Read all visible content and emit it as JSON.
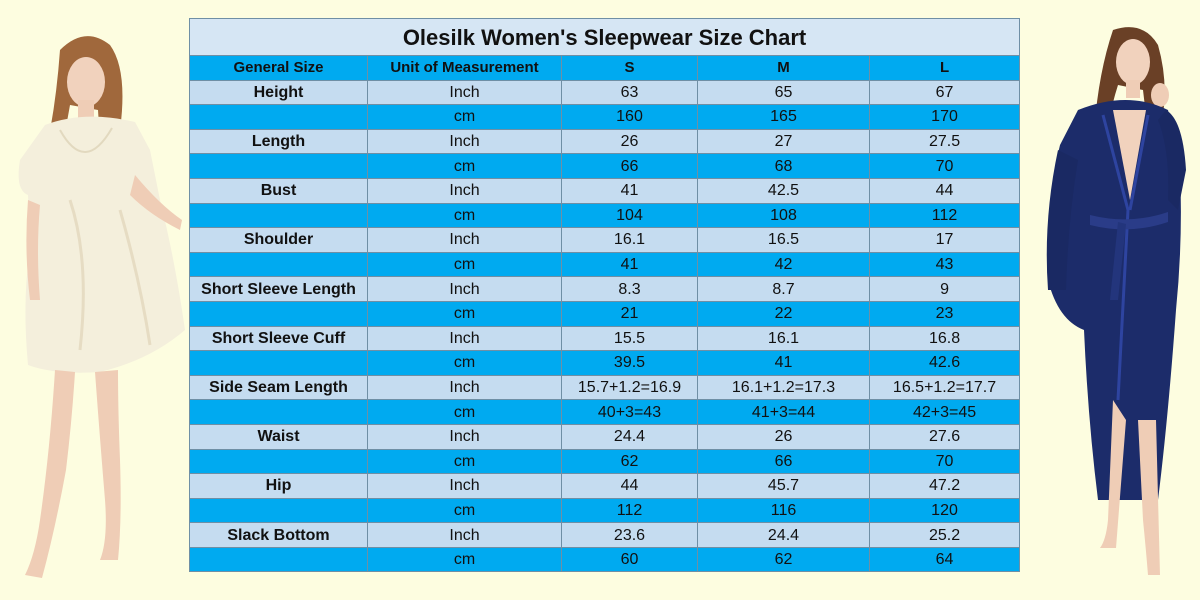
{
  "chart": {
    "title": "Olesilk  Women's Sleepwear Size Chart",
    "headers": [
      "General Size",
      "Unit of Measurement",
      "S",
      "M",
      "L"
    ],
    "rows": [
      {
        "label": "Height",
        "inch": [
          "63",
          "65",
          "67"
        ],
        "cm": [
          "160",
          "165",
          "170"
        ]
      },
      {
        "label": "Length",
        "inch": [
          "26",
          "27",
          "27.5"
        ],
        "cm": [
          "66",
          "68",
          "70"
        ]
      },
      {
        "label": "Bust",
        "inch": [
          "41",
          "42.5",
          "44"
        ],
        "cm": [
          "104",
          "108",
          "112"
        ]
      },
      {
        "label": "Shoulder",
        "inch": [
          "16.1",
          "16.5",
          "17"
        ],
        "cm": [
          "41",
          "42",
          "43"
        ]
      },
      {
        "label": "Short Sleeve Length",
        "inch": [
          "8.3",
          "8.7",
          "9"
        ],
        "cm": [
          "21",
          "22",
          "23"
        ]
      },
      {
        "label": "Short Sleeve Cuff",
        "inch": [
          "15.5",
          "16.1",
          "16.8"
        ],
        "cm": [
          "39.5",
          "41",
          "42.6"
        ]
      },
      {
        "label": "Side Seam Length",
        "inch": [
          "15.7+1.2=16.9",
          "16.1+1.2=17.3",
          "16.5+1.2=17.7"
        ],
        "cm": [
          "40+3=43",
          "41+3=44",
          "42+3=45"
        ]
      },
      {
        "label": "Waist",
        "inch": [
          "24.4",
          "26",
          "27.6"
        ],
        "cm": [
          "62",
          "66",
          "70"
        ]
      },
      {
        "label": "Hip",
        "inch": [
          "44",
          "45.7",
          "47.2"
        ],
        "cm": [
          "112",
          "116",
          "120"
        ]
      },
      {
        "label": "Slack Bottom",
        "inch": [
          "23.6",
          "24.4",
          "25.2"
        ],
        "cm": [
          "60",
          "62",
          "64"
        ]
      }
    ],
    "units": {
      "inch": "Inch",
      "cm": "cm"
    }
  },
  "colors": {
    "background": "#fdfde0",
    "header": "#00aaf0",
    "light_row": "#c5dcf0",
    "title_bg": "#d6e6f4"
  },
  "images": {
    "left": "woman-in-ivory-silk-nightgown",
    "right": "woman-in-navy-silk-robe"
  }
}
